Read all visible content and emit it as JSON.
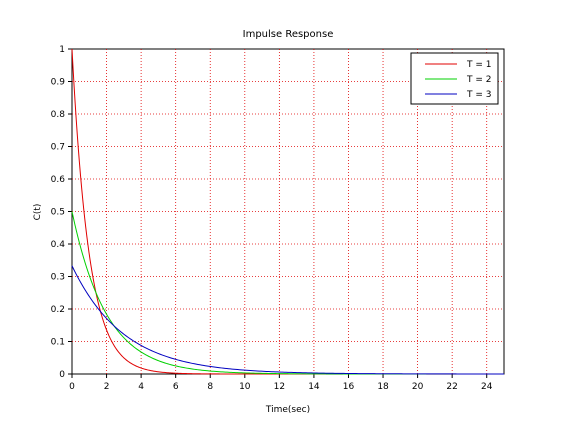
{
  "chart_data": {
    "type": "line",
    "title": "Impulse Response",
    "xlabel": "Time(sec)",
    "ylabel": "C(t)",
    "xlim": [
      0,
      25
    ],
    "ylim": [
      0,
      1
    ],
    "xticks": [
      0,
      2,
      4,
      6,
      8,
      10,
      12,
      14,
      16,
      18,
      20,
      22,
      24
    ],
    "yticks": [
      0,
      0.1,
      0.2,
      0.3,
      0.4,
      0.5,
      0.6,
      0.7,
      0.8,
      0.9,
      1
    ],
    "grid": true,
    "legend_position": "top-right",
    "series": [
      {
        "name": "T = 1",
        "color": "#e00000",
        "amplitude": 1.0,
        "time_constant": 1,
        "x_end": 14.7
      },
      {
        "name": "T = 2",
        "color": "#00d000",
        "amplitude": 0.5,
        "time_constant": 2,
        "x_end": 20.5
      },
      {
        "name": "T = 3",
        "color": "#0000c0",
        "amplitude": 0.333,
        "time_constant": 3,
        "x_end": 25
      }
    ]
  }
}
